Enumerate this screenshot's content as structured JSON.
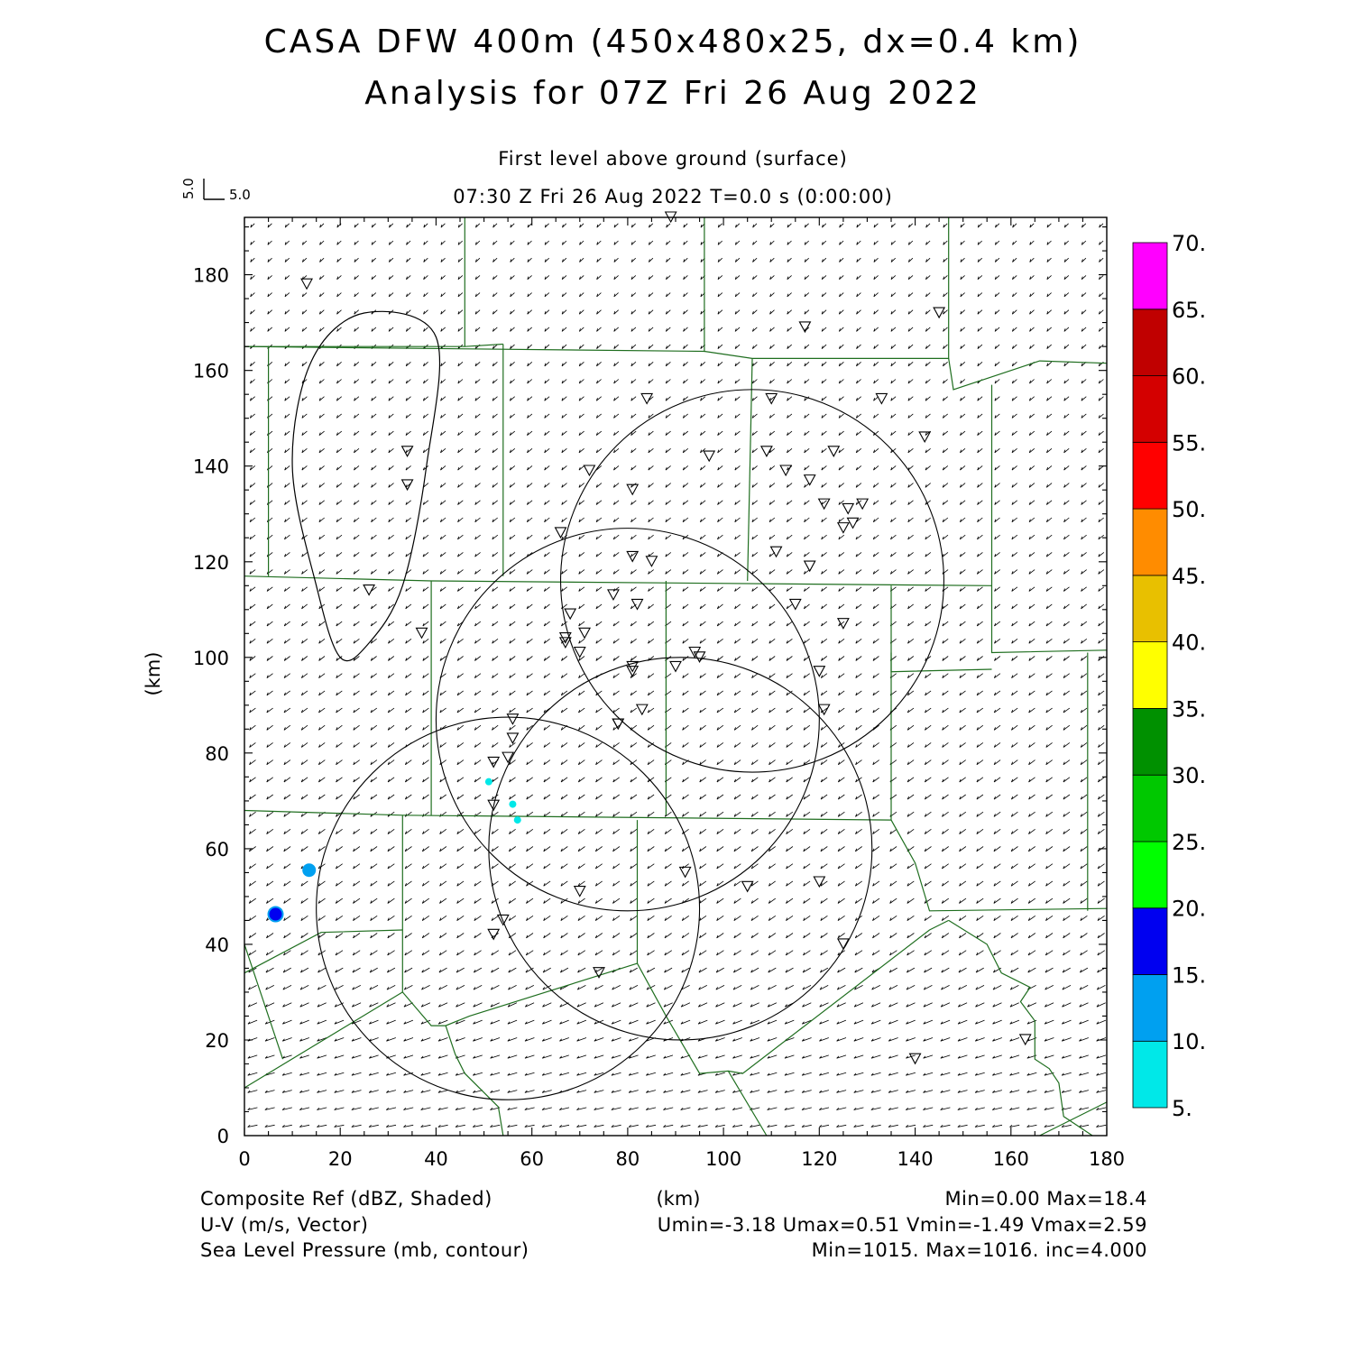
{
  "title": {
    "line1": "CASA DFW 400m (450x480x25, dx=0.4 km)",
    "line2": "Analysis for 07Z Fri 26 Aug 2022"
  },
  "subtitle": {
    "level": "First level above ground (surface)",
    "time": "07:30 Z Fri 26 Aug 2022   T=0.0 s (0:00:00)"
  },
  "vector_scale": {
    "u_label": "5.0",
    "v_label": "5.0"
  },
  "chart_data": {
    "type": "map",
    "xlabel": "(km)",
    "ylabel": "(km)",
    "xlim": [
      0,
      180
    ],
    "ylim": [
      0,
      192
    ],
    "x_ticks": [
      0,
      20,
      40,
      60,
      80,
      100,
      120,
      140,
      160,
      180
    ],
    "y_ticks": [
      0,
      20,
      40,
      60,
      80,
      100,
      120,
      140,
      160,
      180
    ],
    "fields": [
      {
        "name": "Composite Ref (dBZ, Shaded)",
        "stats": "Min=0.00 Max=18.4"
      },
      {
        "name": "U-V (m/s, Vector)",
        "stats": "Umin=-3.18 Umax=0.51 Vmin=-1.49 Vmax=2.59"
      },
      {
        "name": "Sea Level Pressure (mb, contour)",
        "stats": "Min=1015. Max=1016. inc=4.000"
      }
    ],
    "colorbar": {
      "levels": [
        "5.",
        "10.",
        "15.",
        "20.",
        "25.",
        "30.",
        "35.",
        "40.",
        "45.",
        "50.",
        "55.",
        "60.",
        "65.",
        "70."
      ],
      "colors": [
        "#00e8e8",
        "#00a0f0",
        "#0000f0",
        "#00ff00",
        "#00c800",
        "#009000",
        "#ffff00",
        "#e8c000",
        "#ff8c00",
        "#ff0000",
        "#d40000",
        "#c00000",
        "#ff00ff"
      ]
    },
    "radar_rings": [
      {
        "center": [
          106,
          116
        ],
        "radius_km": 40
      },
      {
        "center": [
          80,
          87
        ],
        "radius_km": 40
      },
      {
        "center": [
          91,
          60
        ],
        "radius_km": 40
      },
      {
        "center": [
          55,
          47.5
        ],
        "radius_km": 40
      }
    ],
    "pressure_contour": [
      [
        20,
        100
      ],
      [
        15,
        115
      ],
      [
        10,
        140
      ],
      [
        14,
        162
      ],
      [
        25,
        172
      ],
      [
        40,
        167
      ],
      [
        38,
        140
      ],
      [
        33,
        115
      ],
      [
        26,
        103
      ],
      [
        20,
        100
      ]
    ],
    "stations": [
      [
        13,
        178
      ],
      [
        89,
        192
      ],
      [
        117,
        169
      ],
      [
        145,
        172
      ],
      [
        84,
        154
      ],
      [
        110,
        154
      ],
      [
        133,
        154
      ],
      [
        142,
        146
      ],
      [
        34,
        143
      ],
      [
        34,
        136
      ],
      [
        97,
        142
      ],
      [
        109,
        143
      ],
      [
        123,
        143
      ],
      [
        72,
        139
      ],
      [
        113,
        139
      ],
      [
        118,
        137
      ],
      [
        81,
        135
      ],
      [
        121,
        132
      ],
      [
        126,
        131
      ],
      [
        129,
        132
      ],
      [
        127,
        128
      ],
      [
        125,
        127
      ],
      [
        66,
        126
      ],
      [
        81,
        121
      ],
      [
        85,
        120
      ],
      [
        111,
        122
      ],
      [
        118,
        119
      ],
      [
        26,
        114
      ],
      [
        77,
        113
      ],
      [
        82,
        111
      ],
      [
        115,
        111
      ],
      [
        68,
        109
      ],
      [
        37,
        105
      ],
      [
        71,
        105
      ],
      [
        125,
        107
      ],
      [
        67,
        104
      ],
      [
        67,
        103
      ],
      [
        70,
        101
      ],
      [
        94,
        101
      ],
      [
        95,
        100
      ],
      [
        90,
        98
      ],
      [
        81,
        98
      ],
      [
        81,
        97
      ],
      [
        120,
        97
      ],
      [
        56,
        87
      ],
      [
        78,
        86
      ],
      [
        78,
        86
      ],
      [
        83,
        89
      ],
      [
        121,
        89
      ],
      [
        56,
        83
      ],
      [
        55,
        79
      ],
      [
        52,
        78
      ],
      [
        52,
        69
      ],
      [
        92,
        55
      ],
      [
        120,
        53
      ],
      [
        70,
        51
      ],
      [
        105,
        52
      ],
      [
        54,
        45
      ],
      [
        52,
        42
      ],
      [
        125,
        40
      ],
      [
        74,
        34
      ],
      [
        163,
        20
      ],
      [
        140,
        16
      ]
    ],
    "reflectivity_cells": [
      {
        "x": 6.5,
        "y": 46.3,
        "dbz": 18
      },
      {
        "x": 13.5,
        "y": 55.5,
        "dbz": 11
      },
      {
        "x": 56,
        "y": 69.3,
        "dbz": 8
      },
      {
        "x": 51,
        "y": 74,
        "dbz": 6
      },
      {
        "x": 57,
        "y": 66,
        "dbz": 6
      }
    ],
    "county_borders": [
      [
        [
          0,
          165
        ],
        [
          46,
          165
        ],
        [
          54,
          165.5
        ]
      ],
      [
        [
          46,
          165
        ],
        [
          46,
          192
        ]
      ],
      [
        [
          96,
          192
        ],
        [
          96,
          164
        ],
        [
          0,
          165
        ]
      ],
      [
        [
          5,
          165
        ],
        [
          5,
          117
        ]
      ],
      [
        [
          54,
          165.5
        ],
        [
          54,
          117
        ]
      ],
      [
        [
          96,
          164
        ],
        [
          106,
          162.5
        ],
        [
          147,
          162.5
        ],
        [
          147,
          192
        ]
      ],
      [
        [
          106,
          162.5
        ],
        [
          105,
          116
        ]
      ],
      [
        [
          147,
          162.5
        ],
        [
          148,
          156
        ],
        [
          166,
          162
        ],
        [
          180,
          161.5
        ]
      ],
      [
        [
          156,
          157
        ],
        [
          156,
          101
        ],
        [
          180,
          101.5
        ]
      ],
      [
        [
          0,
          117
        ],
        [
          39,
          116
        ],
        [
          156,
          115
        ]
      ],
      [
        [
          39,
          116
        ],
        [
          39,
          67
        ]
      ],
      [
        [
          88,
          116
        ],
        [
          88,
          67
        ]
      ],
      [
        [
          135,
          115
        ],
        [
          135,
          97
        ],
        [
          156,
          97.5
        ]
      ],
      [
        [
          0,
          68
        ],
        [
          33,
          67
        ],
        [
          135,
          66
        ]
      ],
      [
        [
          135,
          101
        ],
        [
          135,
          66
        ],
        [
          140,
          57
        ],
        [
          143,
          47
        ],
        [
          180,
          47.5
        ]
      ],
      [
        [
          176,
          101
        ],
        [
          176,
          47
        ]
      ],
      [
        [
          33,
          67
        ],
        [
          33,
          30
        ]
      ],
      [
        [
          82,
          66
        ],
        [
          82,
          36
        ]
      ],
      [
        [
          33,
          43
        ],
        [
          16,
          42.5
        ],
        [
          0,
          34
        ]
      ],
      [
        [
          0,
          40
        ],
        [
          8,
          16
        ]
      ],
      [
        [
          0,
          10
        ],
        [
          33,
          30
        ],
        [
          39,
          23
        ],
        [
          42,
          23
        ],
        [
          47,
          25
        ],
        [
          82,
          36
        ]
      ],
      [
        [
          42,
          23
        ],
        [
          44,
          17
        ],
        [
          46,
          13
        ],
        [
          50,
          9
        ],
        [
          53,
          6
        ],
        [
          54,
          0
        ]
      ],
      [
        [
          82,
          36
        ],
        [
          88,
          25
        ],
        [
          95,
          13
        ],
        [
          101,
          13.5
        ],
        [
          104,
          13
        ],
        [
          143,
          43
        ],
        [
          147,
          45
        ]
      ],
      [
        [
          101,
          13.5
        ],
        [
          109,
          0
        ]
      ],
      [
        [
          147,
          45
        ],
        [
          155,
          40
        ],
        [
          158,
          34
        ],
        [
          164,
          31
        ],
        [
          162,
          28
        ],
        [
          165,
          24
        ],
        [
          165,
          16
        ],
        [
          168,
          14
        ],
        [
          170,
          11
        ],
        [
          171,
          4
        ],
        [
          177,
          0
        ]
      ],
      [
        [
          166,
          0
        ],
        [
          180,
          7
        ]
      ]
    ]
  }
}
